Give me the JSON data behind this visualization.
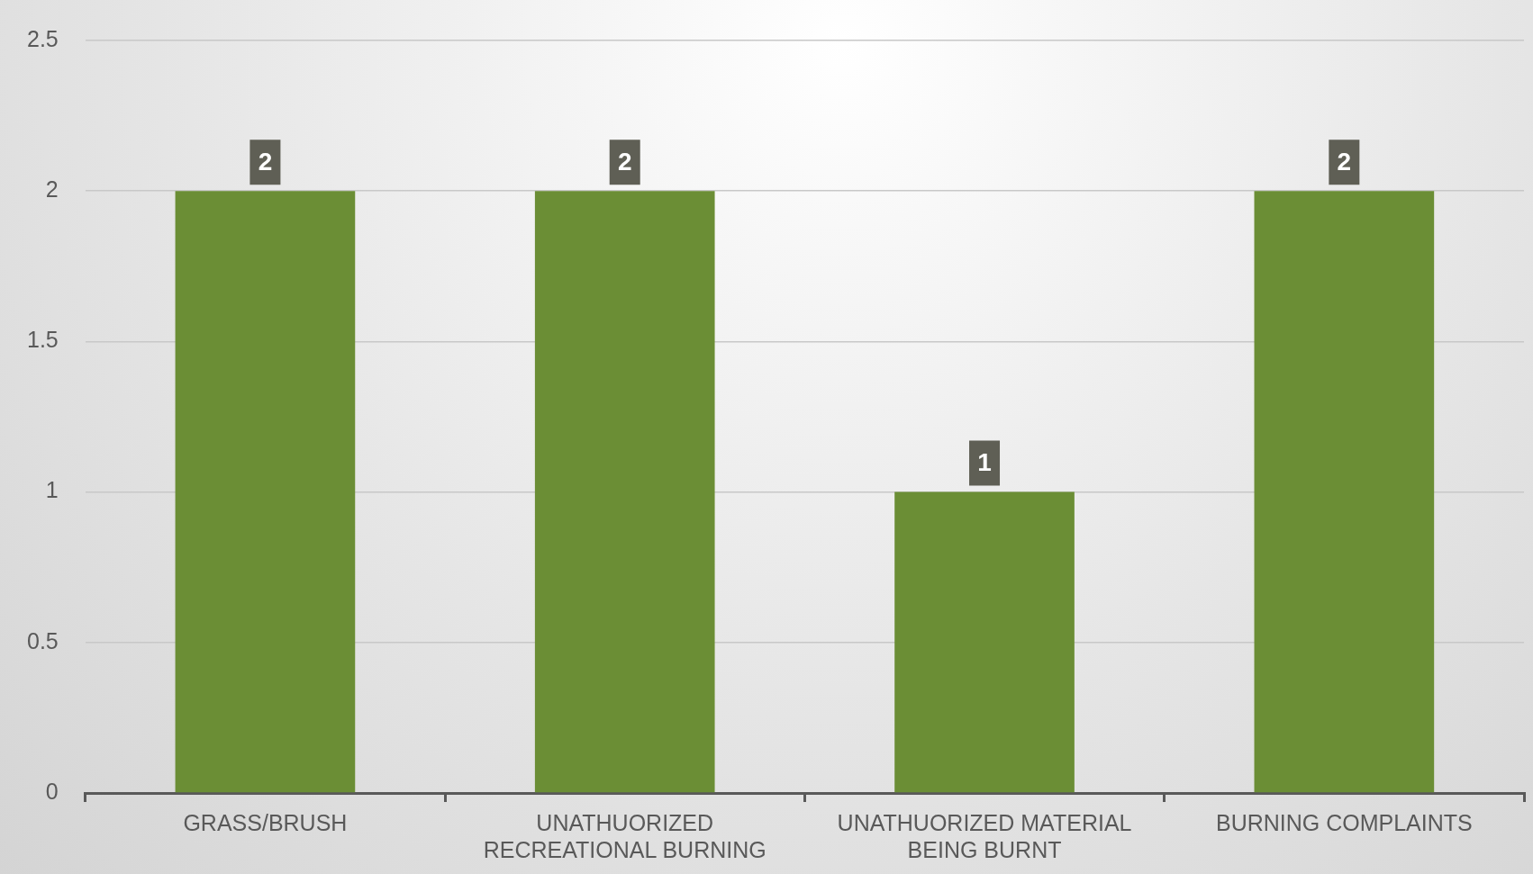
{
  "chart_data": {
    "type": "bar",
    "categories": [
      "GRASS/BRUSH",
      "UNATHUORIZED RECREATIONAL BURNING",
      "UNATHUORIZED MATERIAL BEING BURNT",
      "BURNING COMPLAINTS"
    ],
    "values": [
      2,
      2,
      1,
      2
    ],
    "color": "#6b8e35",
    "ylim": [
      0,
      2.5
    ],
    "yticks": [
      0,
      0.5,
      1,
      1.5,
      2,
      2.5
    ],
    "grid": "y",
    "legend": false,
    "data_labels": true
  }
}
